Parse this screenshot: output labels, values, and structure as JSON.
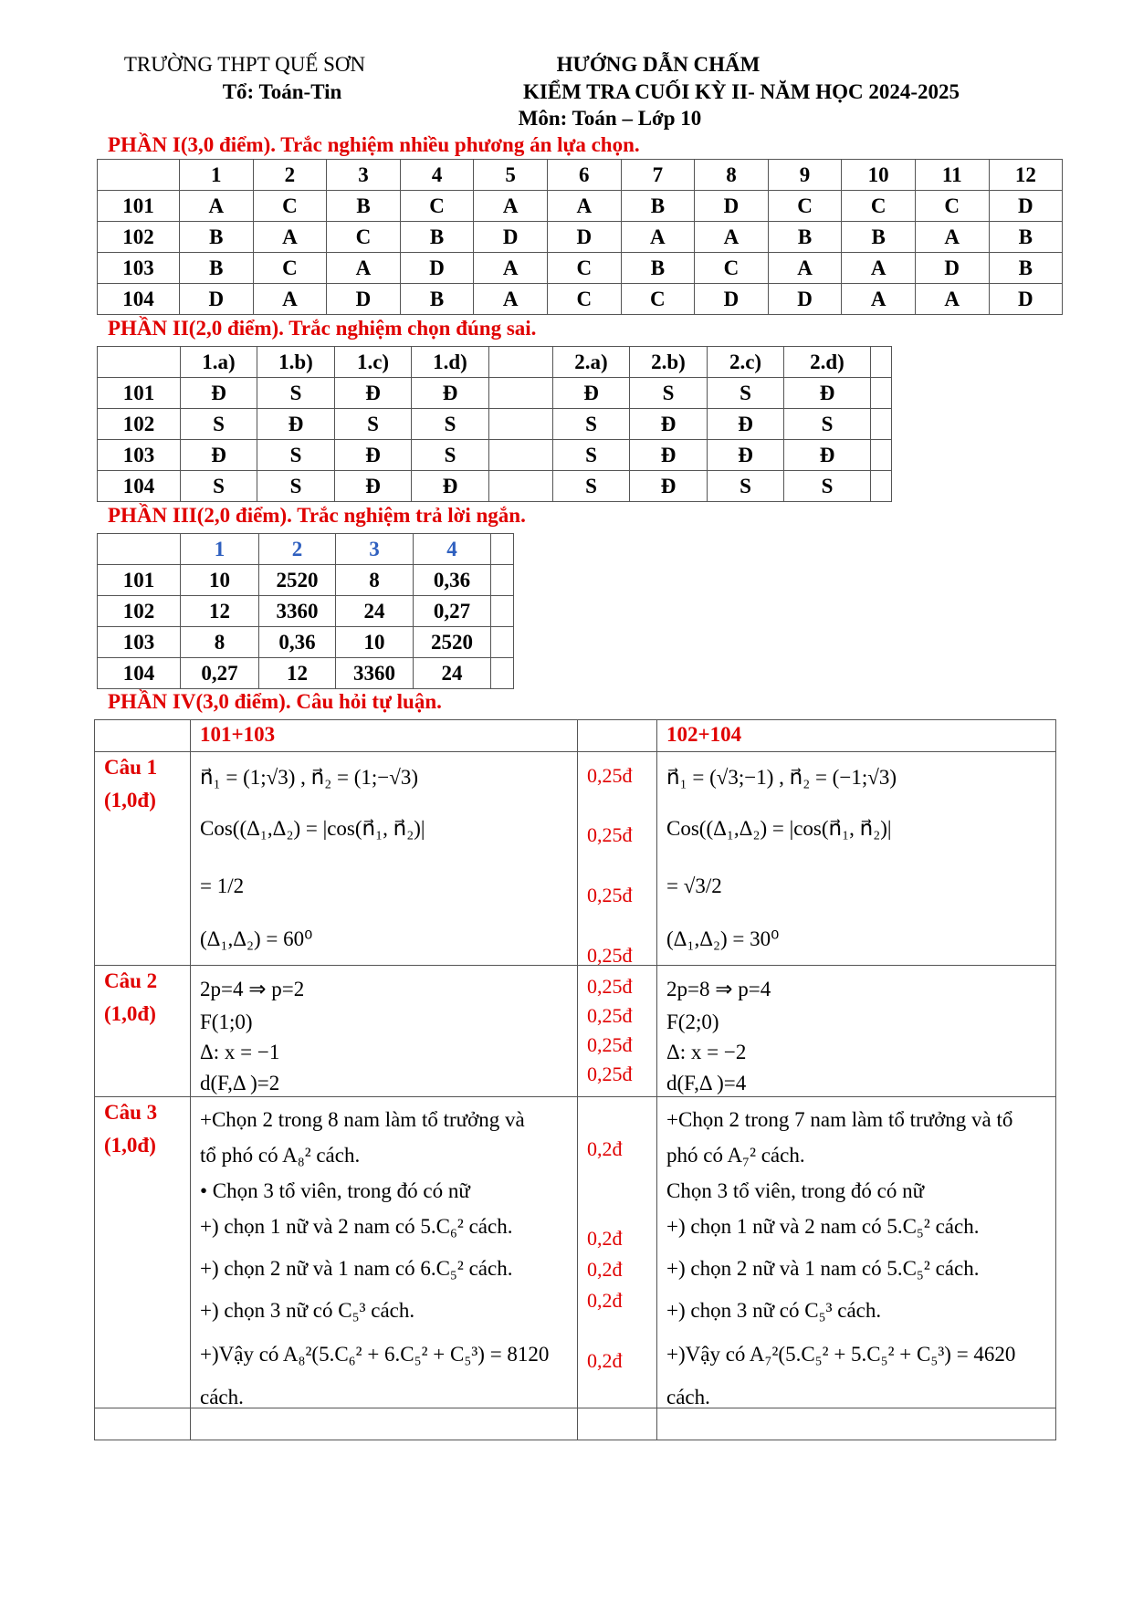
{
  "header": {
    "school": "TRƯỜNG THPT QUẾ SƠN",
    "department": "Tổ: Toán-Tin",
    "title": "HƯỚNG DẪN CHẤM",
    "subtitle": "KIỂM TRA CUỐI KỲ II- NĂM HỌC 2024-2025",
    "subject": "Môn: Toán – Lớp  10"
  },
  "part1": {
    "title": "PHẦN I(3,0 điểm). Trắc nghiệm nhiều phương án lựa chọn.",
    "headers": [
      "",
      "1",
      "2",
      "3",
      "4",
      "5",
      "6",
      "7",
      "8",
      "9",
      "10",
      "11",
      "12"
    ],
    "rows": [
      [
        "101",
        "A",
        "C",
        "B",
        "C",
        "A",
        "A",
        "B",
        "D",
        "C",
        "C",
        "C",
        "D"
      ],
      [
        "102",
        "B",
        "A",
        "C",
        "B",
        "D",
        "D",
        "A",
        "A",
        "B",
        "B",
        "A",
        "B"
      ],
      [
        "103",
        "B",
        "C",
        "A",
        "D",
        "A",
        "C",
        "B",
        "C",
        "A",
        "A",
        "D",
        "B"
      ],
      [
        "104",
        "D",
        "A",
        "D",
        "B",
        "A",
        "C",
        "C",
        "D",
        "D",
        "A",
        "A",
        "D"
      ]
    ]
  },
  "part2": {
    "title": "PHẦN II(2,0 điểm). Trắc nghiệm chọn đúng sai.",
    "headers": [
      "",
      "1.a)",
      "1.b)",
      "1.c)",
      "1.d)",
      "",
      "2.a)",
      "2.b)",
      "2.c)",
      "2.d)",
      ""
    ],
    "rows": [
      [
        "101",
        "Đ",
        "S",
        "Đ",
        "Đ",
        "",
        "Đ",
        "S",
        "S",
        "Đ",
        ""
      ],
      [
        "102",
        "S",
        "Đ",
        "S",
        "S",
        "",
        "S",
        "Đ",
        "Đ",
        "S",
        ""
      ],
      [
        "103",
        "Đ",
        "S",
        "Đ",
        "S",
        "",
        "S",
        "Đ",
        "Đ",
        "Đ",
        ""
      ],
      [
        "104",
        "S",
        "S",
        "Đ",
        "Đ",
        "",
        "S",
        "Đ",
        "S",
        "S",
        ""
      ]
    ]
  },
  "part3": {
    "title": "PHẦN III(2,0 điểm). Trắc nghiệm trả lời ngắn.",
    "headers": [
      "",
      "1",
      "2",
      "3",
      "4",
      ""
    ],
    "rows": [
      [
        "101",
        "10",
        "2520",
        "8",
        "0,36",
        ""
      ],
      [
        "102",
        "12",
        "3360",
        "24",
        "0,27",
        ""
      ],
      [
        "103",
        "8",
        "0,36",
        "10",
        "2520",
        ""
      ],
      [
        "104",
        "0,27",
        "12",
        "3360",
        "24",
        ""
      ]
    ],
    "header_color": "#2e5fbf"
  },
  "part4": {
    "title": "PHẦN IV(3,0 điểm). Câu hỏi tự luận.",
    "col_a": "101+103",
    "col_b": "102+104",
    "questions": [
      {
        "label": "Câu 1",
        "score": "(1,0đ)",
        "a": [
          "n⃗₁ = (1;√3) , n⃗₂ = (1;−√3)",
          "Cos((Δ₁,Δ₂) = |cos(n⃗₁, n⃗₂)|",
          "= 1/2",
          "(Δ₁,Δ₂) = 60⁰"
        ],
        "points": [
          "0,25đ",
          "0,25đ",
          "0,25đ",
          "0,25đ"
        ],
        "b": [
          "n⃗₁ = (√3;−1) , n⃗₂ = (−1;√3)",
          "Cos((Δ₁,Δ₂) = |cos(n⃗₁, n⃗₂)|",
          "= √3/2",
          "(Δ₁,Δ₂) = 30⁰"
        ]
      },
      {
        "label": "Câu 2",
        "score": "(1,0đ)",
        "a": [
          "2p=4 ⇒ p=2",
          "F(1;0)",
          "Δ: x = −1",
          "d(F,Δ )=2"
        ],
        "points": [
          "0,25đ",
          "0,25đ",
          "0,25đ",
          "0,25đ"
        ],
        "b": [
          "2p=8 ⇒ p=4",
          "F(2;0)",
          "Δ: x = −2",
          "d(F,Δ )=4"
        ]
      },
      {
        "label": "Câu 3",
        "score": "(1,0đ)",
        "a": [
          "+Chọn 2 trong 8 nam làm tổ trưởng và",
          "tổ phó có A₈²  cách.",
          "• Chọn 3 tổ viên, trong đó có nữ",
          "+) chọn 1 nữ và 2 nam có 5.C₆²  cách.",
          "+) chọn 2 nữ và 1 nam có 6.C₅²  cách.",
          "+) chọn 3 nữ có C₅³  cách.",
          "+)Vậy  có  A₈²(5.C₆² + 6.C₅² + C₅³) = 8120",
          "cách."
        ],
        "points": [
          "0,2đ",
          "0,2đ",
          "0,2đ",
          "0,2đ",
          "0,2đ"
        ],
        "b": [
          "+Chọn 2 trong 7 nam làm tổ trưởng và tổ",
          "phó có A₇²  cách.",
          "Chọn 3 tổ viên, trong đó có nữ",
          "+) chọn 1 nữ và 2 nam có 5.C₅² cách.",
          "+) chọn 2 nữ và 1 nam có 5.C₅² cách.",
          "+) chọn 3 nữ có C₅³  cách.",
          "+)Vậy  có  A₇²(5.C₅² + 5.C₅² + C₅³) = 4620",
          "cách."
        ]
      }
    ]
  },
  "colors": {
    "section_title": "#e00000",
    "points": "#e00000"
  }
}
